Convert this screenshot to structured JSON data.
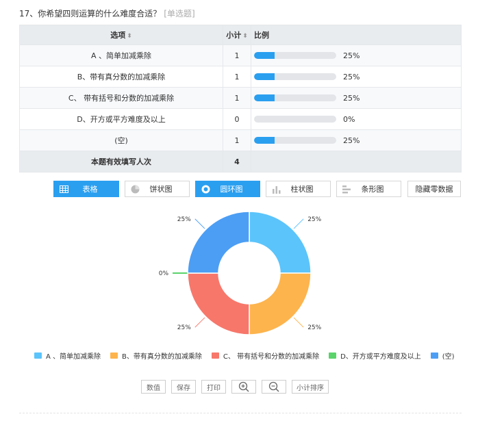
{
  "question": {
    "title": "17、你希望四则运算的什么难度合适？",
    "type_tag": "[单选题]"
  },
  "table": {
    "headers": {
      "option": "选项",
      "count": "小计",
      "ratio": "比例",
      "sort_icon": "sort-icon"
    },
    "rows": [
      {
        "option": "A 、简单加减乘除",
        "count": "1",
        "pct": "25%",
        "fraction": 0.25
      },
      {
        "option": "B、带有真分数的加减乘除",
        "count": "1",
        "pct": "25%",
        "fraction": 0.25
      },
      {
        "option": "C、 带有括号和分数的加减乘除",
        "count": "1",
        "pct": "25%",
        "fraction": 0.25
      },
      {
        "option": "D、开方或平方难度及以上",
        "count": "0",
        "pct": "0%",
        "fraction": 0
      },
      {
        "option": "(空)",
        "count": "1",
        "pct": "25%",
        "fraction": 0.25
      }
    ],
    "total": {
      "label": "本题有效填写人次",
      "count": "4"
    },
    "bar_color": "#2a9ff0"
  },
  "view_buttons": {
    "table": "表格",
    "pie": "饼状图",
    "donut": "圆环图",
    "column": "柱状图",
    "bar": "条形图",
    "hide_zero": "隐藏零数据"
  },
  "active_view": "donut",
  "chart_data": {
    "type": "pie",
    "variant": "donut",
    "categories": [
      "A 、简单加减乘除",
      "B、带有真分数的加减乘除",
      "C、 带有括号和分数的加减乘除",
      "D、开方或平方难度及以上",
      "(空)"
    ],
    "values": [
      25,
      25,
      25,
      0,
      25
    ],
    "labels": [
      "25%",
      "25%",
      "25%",
      "0%",
      "25%"
    ],
    "colors": [
      "#5bc4fb",
      "#fdb44d",
      "#f7776b",
      "#59d36a",
      "#4c9ef4"
    ],
    "legend_position": "bottom"
  },
  "tools": {
    "values": "数值",
    "save": "保存",
    "print": "打印",
    "zoom_in_icon": "zoom-in-icon",
    "zoom_out_icon": "zoom-out-icon",
    "sort": "小计排序"
  }
}
